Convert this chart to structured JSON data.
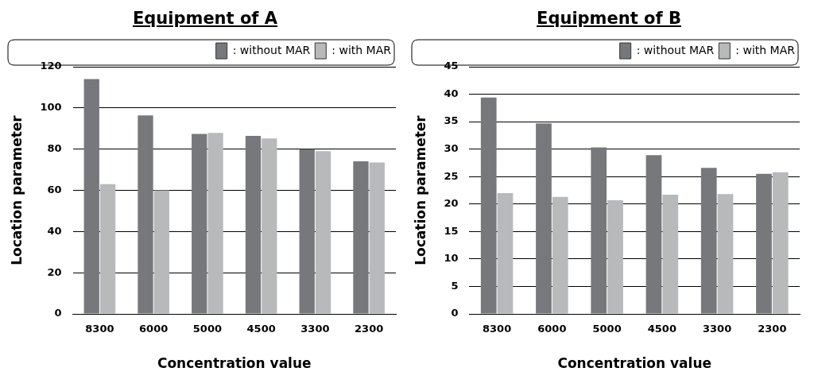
{
  "chart_data": [
    {
      "type": "bar",
      "title": "Equipment of A",
      "xlabel": "Concentration value",
      "ylabel": "Location parameter",
      "categories": [
        "8300",
        "6000",
        "5000",
        "4500",
        "3300",
        "2300"
      ],
      "series": [
        {
          "name": ": without MAR",
          "color": "#77787c",
          "values": [
            114,
            96.4,
            87.4,
            86.4,
            80,
            74.1
          ]
        },
        {
          "name": ": with MAR",
          "color": "#b8b9bb",
          "values": [
            63,
            60,
            87.9,
            85.2,
            79,
            73.5
          ]
        }
      ],
      "ylim": [
        0,
        120
      ],
      "yticks": [
        0,
        20,
        40,
        60,
        80,
        100,
        120
      ],
      "grid": "y",
      "legend": "top right"
    },
    {
      "type": "bar",
      "title": "Equipment of B",
      "xlabel": "Concentration value",
      "ylabel": "Location parameter",
      "categories": [
        "8300",
        "6000",
        "5000",
        "4500",
        "3300",
        "2300"
      ],
      "series": [
        {
          "name": ": without MAR",
          "color": "#77787c",
          "values": [
            39.4,
            34.7,
            30.3,
            28.9,
            26.6,
            25.5
          ]
        },
        {
          "name": ": with MAR",
          "color": "#b8b9bb",
          "values": [
            22,
            21.3,
            20.7,
            21.7,
            21.8,
            25.8
          ]
        }
      ],
      "ylim": [
        0,
        45
      ],
      "yticks": [
        0,
        5,
        10,
        15,
        20,
        25,
        30,
        35,
        40,
        45
      ],
      "grid": "y",
      "legend": "top right"
    }
  ]
}
